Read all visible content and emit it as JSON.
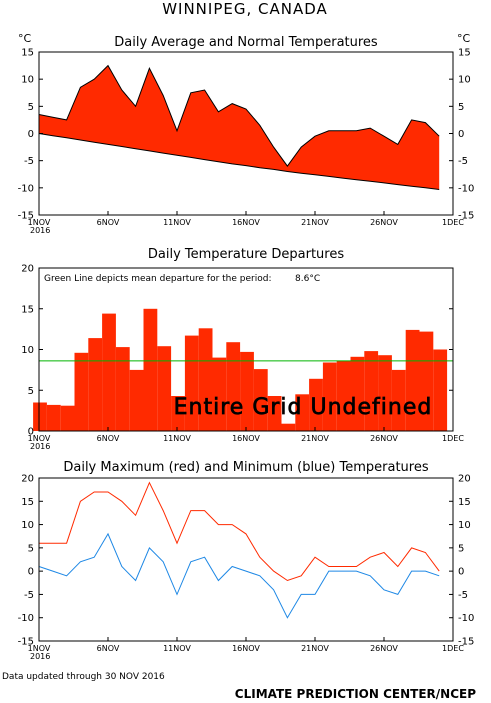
{
  "header": {
    "title": "WINNIPEG, CANADA",
    "unit_left": "°C",
    "unit_right": "°C",
    "footer_left": "Data updated through 30 NOV 2016",
    "footer_right": "CLIMATE PREDICTION CENTER/NCEP"
  },
  "colors": {
    "red": "#ff2a00",
    "blue": "#1e88e5",
    "green": "#00b400",
    "frame": "#000000"
  },
  "chart_data": [
    {
      "type": "area",
      "title": "Daily Average and Normal Temperatures",
      "x_ticks": [
        "1NOV",
        "6NOV",
        "11NOV",
        "16NOV",
        "21NOV",
        "26NOV",
        "1DEC"
      ],
      "x_tick_day": [
        1,
        6,
        11,
        16,
        21,
        26,
        31
      ],
      "x_year": "2016",
      "ylim": [
        -15,
        15
      ],
      "y_ticks": [
        -15,
        -10,
        -5,
        0,
        5,
        10,
        15
      ],
      "days": [
        1,
        2,
        3,
        4,
        5,
        6,
        7,
        8,
        9,
        10,
        11,
        12,
        13,
        14,
        15,
        16,
        17,
        18,
        19,
        20,
        21,
        22,
        23,
        24,
        25,
        26,
        27,
        28,
        29,
        30
      ],
      "series": [
        {
          "name": "Average",
          "values": [
            3.5,
            3,
            2.5,
            8.5,
            10,
            12.5,
            8,
            5,
            12,
            7,
            0.5,
            7.5,
            8,
            4,
            5.5,
            4.5,
            1.5,
            -2.5,
            -6,
            -2.5,
            -0.5,
            0.5,
            0.5,
            0.5,
            1,
            -0.5,
            -2,
            2.5,
            2,
            -0.5
          ]
        },
        {
          "name": "Normal",
          "values": [
            0,
            -0.4,
            -0.8,
            -1.2,
            -1.6,
            -2.0,
            -2.4,
            -2.8,
            -3.2,
            -3.6,
            -4.0,
            -4.4,
            -4.8,
            -5.2,
            -5.6,
            -5.9,
            -6.3,
            -6.6,
            -7.0,
            -7.3,
            -7.6,
            -7.9,
            -8.2,
            -8.5,
            -8.8,
            -9.1,
            -9.4,
            -9.7,
            -10.0,
            -10.3
          ]
        }
      ]
    },
    {
      "type": "bar",
      "title": "Daily Temperature Departures",
      "note": "Green Line depicts mean departure for the period:",
      "mean_value": "8.6°C",
      "mean": 8.6,
      "overlay_text": "Entire Grid Undefined",
      "x_ticks": [
        "1NOV",
        "6NOV",
        "11NOV",
        "16NOV",
        "21NOV",
        "26NOV",
        "1DEC"
      ],
      "x_tick_day": [
        1,
        6,
        11,
        16,
        21,
        26,
        31
      ],
      "x_year": "2016",
      "ylim": [
        0,
        20
      ],
      "y_ticks": [
        0,
        5,
        10,
        15,
        20
      ],
      "days": [
        1,
        2,
        3,
        4,
        5,
        6,
        7,
        8,
        9,
        10,
        11,
        12,
        13,
        14,
        15,
        16,
        17,
        18,
        19,
        20,
        21,
        22,
        23,
        24,
        25,
        26,
        27,
        28,
        29,
        30
      ],
      "values": [
        3.5,
        3.2,
        3.1,
        9.6,
        11.4,
        14.4,
        10.3,
        7.5,
        15.0,
        10.4,
        4.3,
        11.7,
        12.6,
        9.0,
        10.9,
        9.7,
        7.6,
        4.3,
        0.9,
        4.5,
        6.4,
        8.4,
        8.6,
        9.1,
        9.8,
        9.3,
        7.5,
        12.4,
        12.2,
        10.0
      ]
    },
    {
      "type": "line",
      "title": "Daily Maximum (red) and Minimum (blue) Temperatures",
      "x_ticks": [
        "1NOV",
        "6NOV",
        "11NOV",
        "16NOV",
        "21NOV",
        "26NOV",
        "1DEC"
      ],
      "x_tick_day": [
        1,
        6,
        11,
        16,
        21,
        26,
        31
      ],
      "x_year": "2016",
      "ylim": [
        -15,
        20
      ],
      "y_ticks": [
        -15,
        -10,
        -5,
        0,
        5,
        10,
        15,
        20
      ],
      "days": [
        1,
        2,
        3,
        4,
        5,
        6,
        7,
        8,
        9,
        10,
        11,
        12,
        13,
        14,
        15,
        16,
        17,
        18,
        19,
        20,
        21,
        22,
        23,
        24,
        25,
        26,
        27,
        28,
        29,
        30
      ],
      "series": [
        {
          "name": "Maximum",
          "color": "red",
          "values": [
            6,
            6,
            6,
            15,
            17,
            17,
            15,
            12,
            19,
            13,
            6,
            13,
            13,
            10,
            10,
            8,
            3,
            0,
            -2,
            -1,
            3,
            1,
            1,
            1,
            3,
            4,
            1,
            5,
            4,
            0
          ]
        },
        {
          "name": "Minimum",
          "color": "blue",
          "values": [
            1,
            0,
            -1,
            2,
            3,
            8,
            1,
            -2,
            5,
            2,
            -5,
            2,
            3,
            -2,
            1,
            0,
            -1,
            -4,
            -10,
            -5,
            -5,
            0,
            0,
            0,
            -1,
            -4,
            -5,
            0,
            0,
            -1
          ]
        }
      ]
    }
  ]
}
